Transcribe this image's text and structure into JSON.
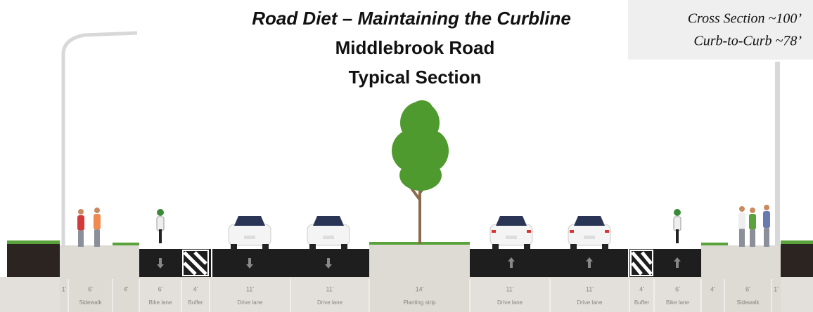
{
  "title": "Road Diet – Maintaining the Curbline",
  "subtitle_lines": [
    "Middlebrook Road",
    "Typical Section"
  ],
  "info_box": {
    "lines": [
      "Cross Section ~100’",
      "Curb-to-Curb ~78’"
    ]
  },
  "segments": [
    {
      "width": "1'"
    },
    {
      "width": "6'",
      "name": "Sidewalk"
    },
    {
      "width": "4'"
    },
    {
      "width": "6'",
      "name": "Bike lane"
    },
    {
      "width": "4'",
      "name": "Buffer"
    },
    {
      "width": "11'",
      "name": "Drive lane"
    },
    {
      "width": "11'",
      "name": "Drive lane"
    },
    {
      "width": "14'",
      "name": "Planting strip"
    },
    {
      "width": "11'",
      "name": "Drive lane"
    },
    {
      "width": "11'",
      "name": "Drive lane"
    },
    {
      "width": "4'",
      "name": "Buffer"
    },
    {
      "width": "6'",
      "name": "Bike lane"
    },
    {
      "width": "4'"
    },
    {
      "width": "6'",
      "name": "Sidewalk"
    },
    {
      "width": "1'"
    }
  ]
}
